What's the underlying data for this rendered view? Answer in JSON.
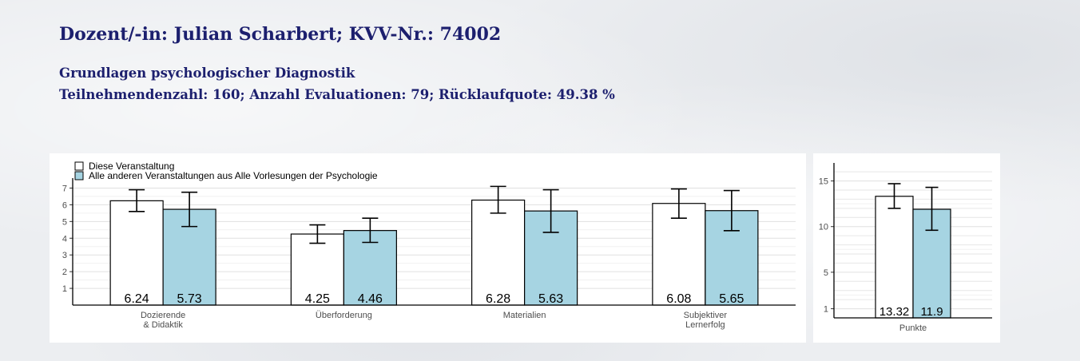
{
  "header": {
    "title": "Dozent/-in: Julian Scharbert; KVV-Nr.: 74002",
    "course": "Grundlagen psychologischer Diagnostik",
    "stats": "Teilnehmendenzahl: 160; Anzahl Evaluationen: 79; Rücklaufquote: 49.38 %"
  },
  "colors": {
    "this": "#ffffff",
    "others": "#a6d4e2",
    "header_text": "#1c1f6e"
  },
  "chart_data": [
    {
      "type": "bar",
      "legend": {
        "position": "top-left",
        "entries": [
          "Diese Veranstaltung",
          "Alle anderen Veranstaltungen aus Alle Vorlesungen der Psychologie"
        ]
      },
      "categories": [
        [
          "Dozierende",
          "& Didaktik"
        ],
        [
          "Überforderung"
        ],
        [
          "Materialien"
        ],
        [
          "Subjektiver",
          "Lernerfolg"
        ]
      ],
      "ylim": [
        0,
        7.5
      ],
      "yticks": [
        1,
        2,
        3,
        4,
        5,
        6,
        7
      ],
      "grid": true,
      "series": [
        {
          "name": "Diese Veranstaltung",
          "values": [
            6.24,
            4.25,
            6.28,
            6.08
          ],
          "labels": [
            "6.24",
            "4.25",
            "6.28",
            "6.08"
          ],
          "err_low": [
            5.6,
            3.7,
            5.5,
            5.2
          ],
          "err_high": [
            6.9,
            4.8,
            7.1,
            6.95
          ]
        },
        {
          "name": "Alle anderen Veranstaltungen aus Alle Vorlesungen der Psychologie",
          "values": [
            5.73,
            4.46,
            5.63,
            5.65
          ],
          "labels": [
            "5.73",
            "4.46",
            "5.63",
            "5.65"
          ],
          "err_low": [
            4.7,
            3.75,
            4.35,
            4.45
          ],
          "err_high": [
            6.75,
            5.2,
            6.9,
            6.85
          ]
        }
      ]
    },
    {
      "type": "bar",
      "categories": [
        [
          "Punkte"
        ]
      ],
      "ylim": [
        0,
        16.8
      ],
      "yticks": [
        1,
        5,
        10,
        15
      ],
      "grid": true,
      "series": [
        {
          "name": "Diese Veranstaltung",
          "values": [
            13.32
          ],
          "labels": [
            "13.32"
          ],
          "err_low": [
            12.0
          ],
          "err_high": [
            14.7
          ]
        },
        {
          "name": "Alle anderen Veranstaltungen aus Alle Vorlesungen der Psychologie",
          "values": [
            11.9
          ],
          "labels": [
            "11.9"
          ],
          "err_low": [
            9.6
          ],
          "err_high": [
            14.3
          ]
        }
      ]
    }
  ]
}
